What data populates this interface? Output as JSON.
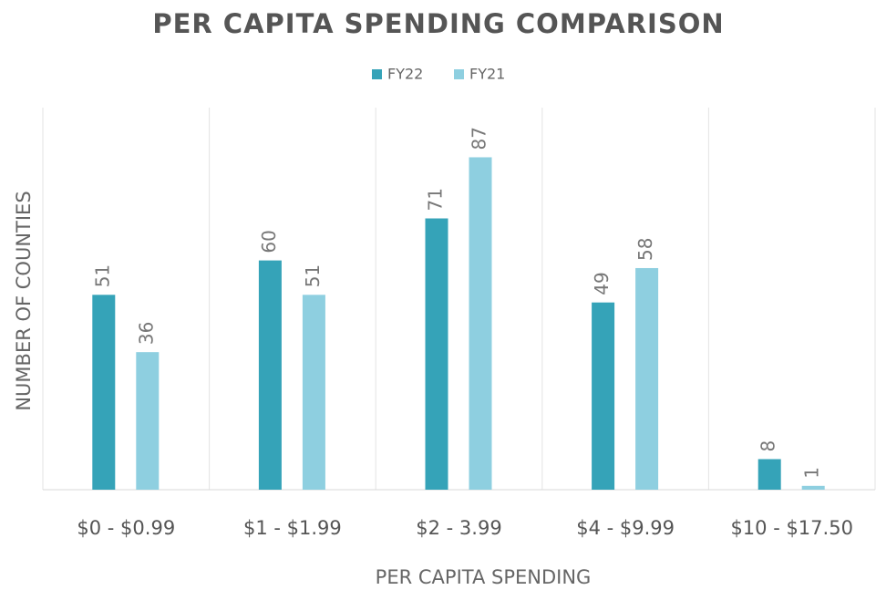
{
  "chart_data": {
    "type": "bar",
    "title": "PER CAPITA SPENDING COMPARISON",
    "x_label": "PER CAPITA SPENDING",
    "y_label": "NUMBER OF COUNTIES",
    "categories": [
      "$0 - $0.99",
      "$1 - $1.99",
      "$2 - 3.99",
      "$4 - $9.99",
      "$10 - $17.50"
    ],
    "series": [
      {
        "name": "FY22",
        "color": "#35a3b8",
        "values": [
          51,
          60,
          71,
          49,
          8
        ]
      },
      {
        "name": "FY21",
        "color": "#8ecfe0",
        "values": [
          36,
          51,
          87,
          58,
          1
        ]
      }
    ],
    "ylim": [
      0,
      100
    ],
    "legend": "top"
  }
}
